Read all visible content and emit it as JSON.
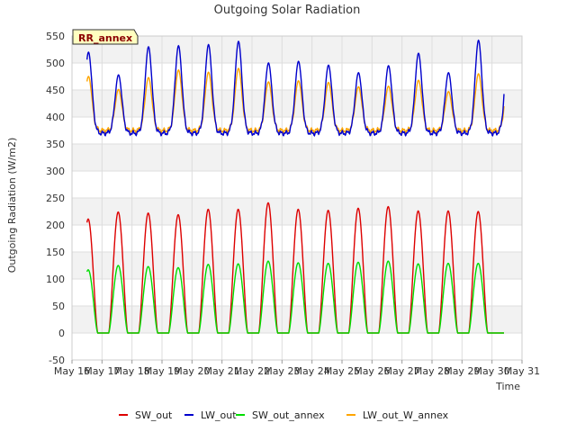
{
  "chart_data": {
    "type": "line",
    "title": "Outgoing Solar Radiation",
    "xlabel": "Time",
    "ylabel": "Outgoing Radiation (W/m2)",
    "ylim": [
      -50,
      550
    ],
    "yticks": [
      -50,
      0,
      50,
      100,
      150,
      200,
      250,
      300,
      350,
      400,
      450,
      500,
      550
    ],
    "xlim": [
      16,
      31
    ],
    "xticks": [
      {
        "value": 16,
        "label": "May 16"
      },
      {
        "value": 17,
        "label": "May 17"
      },
      {
        "value": 18,
        "label": "May 18"
      },
      {
        "value": 19,
        "label": "May 19"
      },
      {
        "value": 20,
        "label": "May 20"
      },
      {
        "value": 21,
        "label": "May 21"
      },
      {
        "value": 22,
        "label": "May 22"
      },
      {
        "value": 23,
        "label": "May 23"
      },
      {
        "value": 24,
        "label": "May 24"
      },
      {
        "value": 25,
        "label": "May 25"
      },
      {
        "value": 26,
        "label": "May 26"
      },
      {
        "value": 27,
        "label": "May 27"
      },
      {
        "value": 28,
        "label": "May 28"
      },
      {
        "value": 29,
        "label": "May 29"
      },
      {
        "value": 30,
        "label": "May 30"
      },
      {
        "value": 31,
        "label": "May 31"
      }
    ],
    "grid": true,
    "legend_position": "bottom",
    "annotation": "RR_annex",
    "series": [
      {
        "name": "SW_out",
        "color": "#dd0000",
        "daily_peaks": [
          211,
          224,
          222,
          219,
          229,
          229,
          241,
          229,
          227,
          231,
          234,
          226,
          226,
          225
        ]
      },
      {
        "name": "LW_out",
        "color": "#0000cc",
        "daily_peaks": [
          520,
          478,
          530,
          532,
          534,
          540,
          500,
          503,
          496,
          482,
          495,
          518,
          482,
          542
        ],
        "night_base": 370
      },
      {
        "name": "SW_out_annex",
        "color": "#00dd00",
        "daily_peaks": [
          117,
          125,
          123,
          121,
          127,
          128,
          133,
          130,
          129,
          131,
          133,
          128,
          129,
          129
        ]
      },
      {
        "name": "LW_out_W_annex",
        "color": "#ffa500",
        "daily_peaks": [
          475,
          451,
          473,
          487,
          483,
          490,
          465,
          467,
          464,
          456,
          457,
          468,
          447,
          480
        ],
        "night_base": 375
      }
    ]
  }
}
